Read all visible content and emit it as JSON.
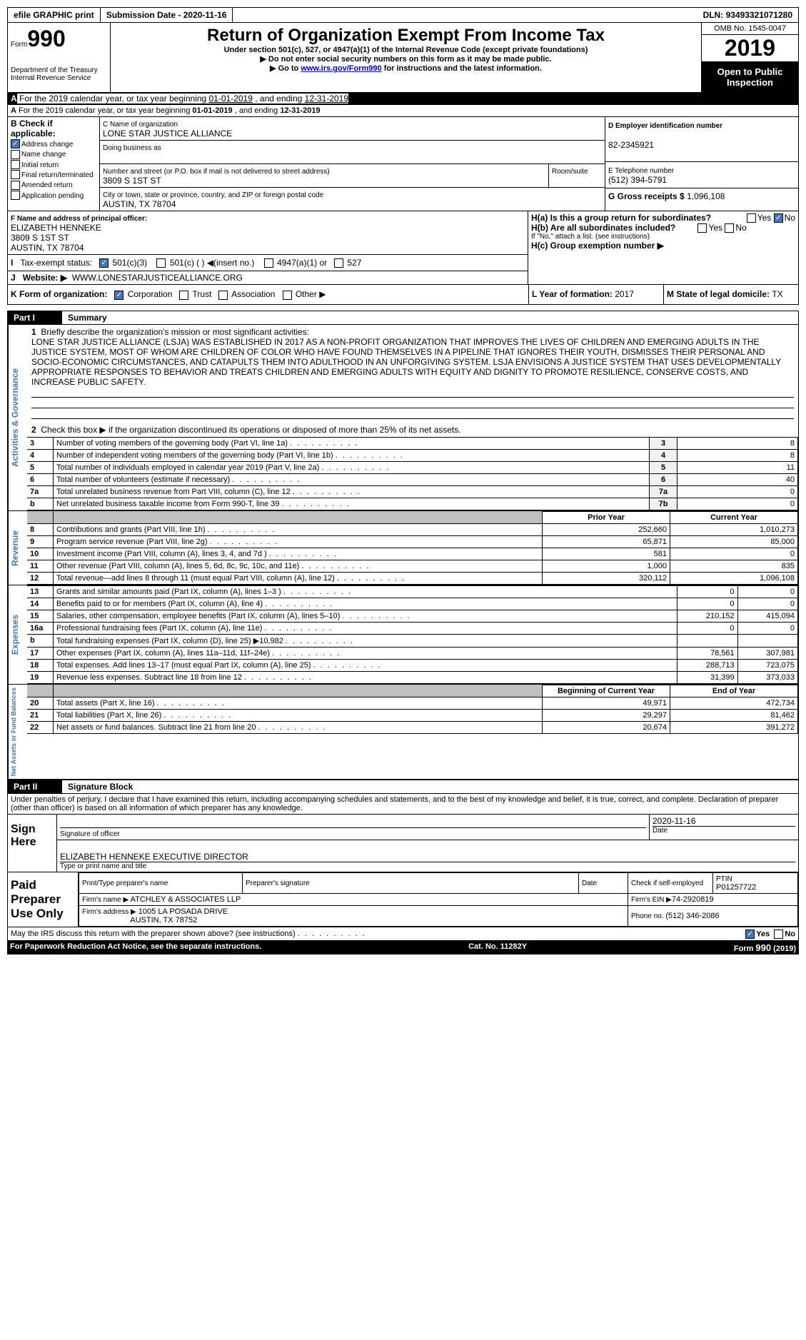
{
  "topbar": {
    "efile": "efile GRAPHIC print",
    "subdate_label": "Submission Date - ",
    "subdate": "2020-11-16",
    "dln_label": "DLN: ",
    "dln": "93493321071280"
  },
  "header": {
    "form_word": "Form",
    "form_num": "990",
    "dept": "Department of the Treasury",
    "irs": "Internal Revenue Service",
    "title": "Return of Organization Exempt From Income Tax",
    "sub1": "Under section 501(c), 527, or 4947(a)(1) of the Internal Revenue Code (except private foundations)",
    "sub2": "▶ Do not enter social security numbers on this form as it may be made public.",
    "sub3a": "▶ Go to ",
    "sub3_link": "www.irs.gov/Form990",
    "sub3b": " for instructions and the latest information.",
    "omb": "OMB No. 1545-0047",
    "year": "2019",
    "pubins": "Open to Public Inspection"
  },
  "a": {
    "text": "For the 2019 calendar year, or tax year beginning ",
    "begin": "01-01-2019",
    "mid": " , and ending ",
    "end": "12-31-2019"
  },
  "b": {
    "label": "B Check if applicable:",
    "addr": "Address change",
    "name": "Name change",
    "init": "Initial return",
    "final": "Final return/terminated",
    "amend": "Amended return",
    "app": "Application pending"
  },
  "c": {
    "label": "C Name of organization",
    "org": "LONE STAR JUSTICE ALLIANCE",
    "dba_label": "Doing business as",
    "dba": "",
    "street_label": "Number and street (or P.O. box if mail is not delivered to street address)",
    "street": "3809 S 1ST ST",
    "suite_label": "Room/suite",
    "suite": "",
    "city_label": "City or town, state or province, country, and ZIP or foreign postal code",
    "city": "AUSTIN, TX  78704"
  },
  "d": {
    "label": "D Employer identification number",
    "val": "82-2345921"
  },
  "e": {
    "label": "E Telephone number",
    "val": "(512) 394-5791"
  },
  "g": {
    "label": "G Gross receipts $ ",
    "val": "1,096,108"
  },
  "f": {
    "label": "F  Name and address of principal officer:",
    "name": "ELIZABETH HENNEKE",
    "street": "3809 S 1ST ST",
    "city": "AUSTIN, TX  78704"
  },
  "h": {
    "a": "H(a)  Is this a group return for subordinates?",
    "b": "H(b)  Are all subordinates included?",
    "note": "If \"No,\" attach a list. (see instructions)",
    "c": "H(c)  Group exemption number ▶",
    "yes": "Yes",
    "no": "No"
  },
  "i": {
    "label": "Tax-exempt status:",
    "c1": "501(c)(3)",
    "c2": "501(c) (  ) ◀(insert no.)",
    "c3": "4947(a)(1) or",
    "c4": "527"
  },
  "j": {
    "label": "Website: ▶",
    "val": "WWW.LONESTARJUSTICEALLIANCE.ORG"
  },
  "k": {
    "label": "K Form of organization:",
    "corp": "Corporation",
    "trust": "Trust",
    "assoc": "Association",
    "other": "Other ▶"
  },
  "l": {
    "label": "L Year of formation: ",
    "val": "2017"
  },
  "m": {
    "label": "M State of legal domicile: ",
    "val": "TX"
  },
  "part1": {
    "label": "Part I",
    "title": "Summary"
  },
  "summary": {
    "s1_label": "1",
    "s1": "Briefly describe the organization's mission or most significant activities:",
    "mission": "LONE STAR JUSTICE ALLIANCE (LSJA) WAS ESTABLISHED IN 2017 AS A NON-PROFIT ORGANIZATION THAT IMPROVES THE LIVES OF CHILDREN AND EMERGING ADULTS IN THE JUSTICE SYSTEM, MOST OF WHOM ARE CHILDREN OF COLOR WHO HAVE FOUND THEMSELVES IN A PIPELINE THAT IGNORES THEIR YOUTH, DISMISSES THEIR PERSONAL AND SOCIO-ECONOMIC CIRCUMSTANCES, AND CATAPULTS THEM INTO ADULTHOOD IN AN UNFORGIVING SYSTEM. LSJA ENVISIONS A JUSTICE SYSTEM THAT USES DEVELOPMENTALLY APPROPRIATE RESPONSES TO BEHAVIOR AND TREATS CHILDREN AND EMERGING ADULTS WITH EQUITY AND DIGNITY TO PROMOTE RESILIENCE, CONSERVE COSTS, AND INCREASE PUBLIC SAFETY.",
    "s2": "Check this box ▶      if the organization discontinued its operations or disposed of more than 25% of its net assets.",
    "rows_a": [
      {
        "n": "3",
        "t": "Number of voting members of the governing body (Part VI, line 1a)",
        "l": "3",
        "v": "8"
      },
      {
        "n": "4",
        "t": "Number of independent voting members of the governing body (Part VI, line 1b)",
        "l": "4",
        "v": "8"
      },
      {
        "n": "5",
        "t": "Total number of individuals employed in calendar year 2019 (Part V, line 2a)",
        "l": "5",
        "v": "11"
      },
      {
        "n": "6",
        "t": "Total number of volunteers (estimate if necessary)",
        "l": "6",
        "v": "40"
      },
      {
        "n": "7a",
        "t": "Total unrelated business revenue from Part VIII, column (C), line 12",
        "l": "7a",
        "v": "0"
      },
      {
        "n": "b",
        "t": "Net unrelated business taxable income from Form 990-T, line 39",
        "l": "7b",
        "v": "0"
      }
    ],
    "py": "Prior Year",
    "cy": "Current Year",
    "rev": [
      {
        "n": "8",
        "t": "Contributions and grants (Part VIII, line 1h)",
        "p": "252,660",
        "c": "1,010,273"
      },
      {
        "n": "9",
        "t": "Program service revenue (Part VIII, line 2g)",
        "p": "65,871",
        "c": "85,000"
      },
      {
        "n": "10",
        "t": "Investment income (Part VIII, column (A), lines 3, 4, and 7d )",
        "p": "581",
        "c": "0"
      },
      {
        "n": "11",
        "t": "Other revenue (Part VIII, column (A), lines 5, 6d, 8c, 9c, 10c, and 11e)",
        "p": "1,000",
        "c": "835"
      },
      {
        "n": "12",
        "t": "Total revenue—add lines 8 through 11 (must equal Part VIII, column (A), line 12)",
        "p": "320,112",
        "c": "1,096,108"
      }
    ],
    "exp": [
      {
        "n": "13",
        "t": "Grants and similar amounts paid (Part IX, column (A), lines 1–3 )",
        "p": "0",
        "c": "0"
      },
      {
        "n": "14",
        "t": "Benefits paid to or for members (Part IX, column (A), line 4)",
        "p": "0",
        "c": "0"
      },
      {
        "n": "15",
        "t": "Salaries, other compensation, employee benefits (Part IX, column (A), lines 5–10)",
        "p": "210,152",
        "c": "415,094"
      },
      {
        "n": "16a",
        "t": "Professional fundraising fees (Part IX, column (A), line 11e)",
        "p": "0",
        "c": "0"
      },
      {
        "n": "b",
        "t": "Total fundraising expenses (Part IX, column (D), line 25) ▶10,982",
        "p": "",
        "c": "",
        "gray": true
      },
      {
        "n": "17",
        "t": "Other expenses (Part IX, column (A), lines 11a–11d, 11f–24e)",
        "p": "78,561",
        "c": "307,981"
      },
      {
        "n": "18",
        "t": "Total expenses. Add lines 13–17 (must equal Part IX, column (A), line 25)",
        "p": "288,713",
        "c": "723,075"
      },
      {
        "n": "19",
        "t": "Revenue less expenses. Subtract line 18 from line 12",
        "p": "31,399",
        "c": "373,033"
      }
    ],
    "bcy": "Beginning of Current Year",
    "ecy": "End of Year",
    "net": [
      {
        "n": "20",
        "t": "Total assets (Part X, line 16)",
        "p": "49,971",
        "c": "472,734"
      },
      {
        "n": "21",
        "t": "Total liabilities (Part X, line 26)",
        "p": "29,297",
        "c": "81,462"
      },
      {
        "n": "22",
        "t": "Net assets or fund balances. Subtract line 21 from line 20",
        "p": "20,674",
        "c": "391,272"
      }
    ]
  },
  "sections": {
    "ag": "Activities & Governance",
    "rev": "Revenue",
    "exp": "Expenses",
    "net": "Net Assets or Fund Balances"
  },
  "part2": {
    "label": "Part II",
    "title": "Signature Block",
    "decl": "Under penalties of perjury, I declare that I have examined this return, including accompanying schedules and statements, and to the best of my knowledge and belief, it is true, correct, and complete. Declaration of preparer (other than officer) is based on all information of which preparer has any knowledge."
  },
  "sign": {
    "here": "Sign Here",
    "sig": "Signature of officer",
    "date": "Date",
    "dateval": "2020-11-16",
    "name": "ELIZABETH HENNEKE  EXECUTIVE DIRECTOR",
    "typed": "Type or print name and title"
  },
  "paid": {
    "label": "Paid Preparer Use Only",
    "pname": "Print/Type preparer's name",
    "psig": "Preparer's signature",
    "pdate": "Date",
    "chkself": "Check       if self-employed",
    "ptin_l": "PTIN",
    "ptin": "P01257722",
    "firm_l": "Firm's name    ▶",
    "firm": "ATCHLEY & ASSOCIATES LLP",
    "ein_l": "Firm's EIN ▶",
    "ein": "74-2920819",
    "addr_l": "Firm's address ▶",
    "addr1": "1005 LA POSADA DRIVE",
    "addr2": "AUSTIN, TX  78752",
    "phone_l": "Phone no. ",
    "phone": "(512) 346-2086"
  },
  "foot": {
    "q": "May the IRS discuss this return with the preparer shown above? (see instructions)",
    "yes": "Yes",
    "no": "No",
    "pra": "For Paperwork Reduction Act Notice, see the separate instructions.",
    "cat": "Cat. No. 11282Y",
    "form": "Form 990 (2019)"
  }
}
